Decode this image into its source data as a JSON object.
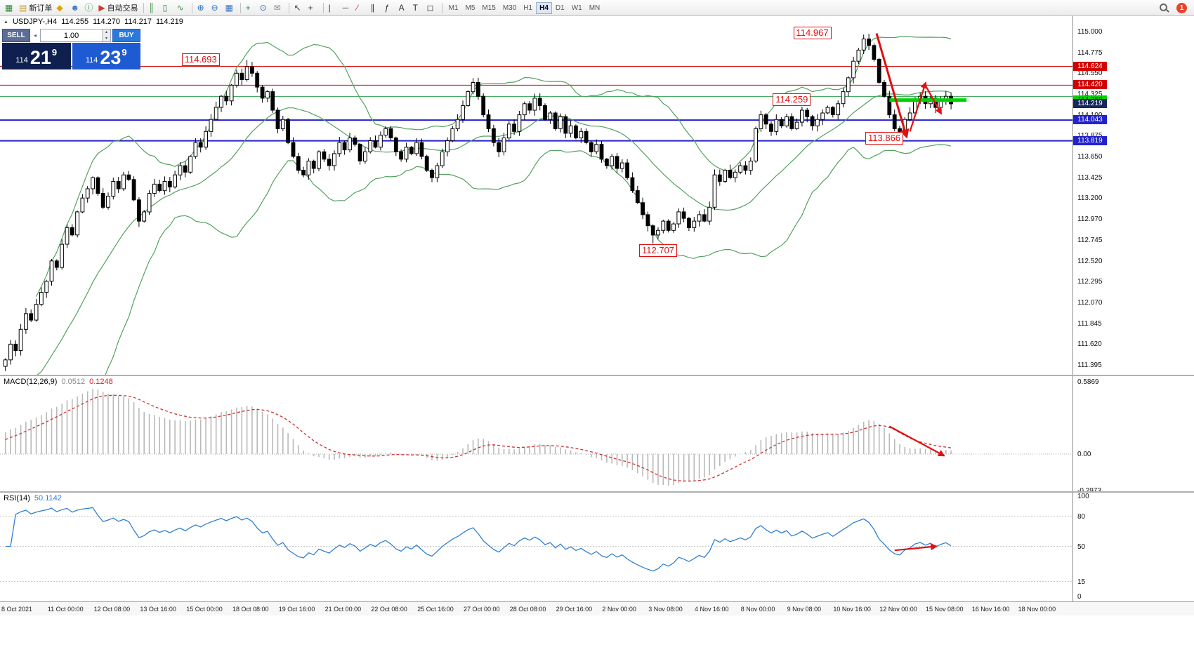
{
  "window": {
    "badge_count": "1"
  },
  "toolbar": {
    "groups": [
      {
        "name": "file",
        "items": [
          {
            "name": "new-chart-button",
            "glyph": "▦",
            "color": "#2f8a3c"
          },
          {
            "name": "new-order-button",
            "glyph": "▤",
            "color": "#caa53a",
            "label": "新订单"
          },
          {
            "name": "deposit-button",
            "glyph": "◆",
            "color": "#e2a400"
          },
          {
            "name": "community-button",
            "glyph": "☻",
            "color": "#3a79c0"
          },
          {
            "name": "help-info-button",
            "glyph": "ⓘ",
            "color": "#2f9a4e"
          },
          {
            "name": "algo-trading-button",
            "glyph": "▶",
            "color": "#d23b2f",
            "label": "自动交易"
          }
        ]
      },
      {
        "name": "chart-type",
        "items": [
          {
            "name": "bar-chart-button",
            "glyph": "║",
            "color": "#2f8a3c"
          },
          {
            "name": "candlestick-chart-button",
            "glyph": "▯",
            "color": "#2f8a3c"
          },
          {
            "name": "line-chart-button",
            "glyph": "∿",
            "color": "#2f8a3c"
          }
        ]
      },
      {
        "name": "zoom",
        "items": [
          {
            "name": "zoom-in-button",
            "glyph": "⊕",
            "color": "#2b6cb8"
          },
          {
            "name": "zoom-out-button",
            "glyph": "⊖",
            "color": "#2b6cb8"
          },
          {
            "name": "tile-windows-button",
            "glyph": "▦",
            "color": "#3a79c0"
          }
        ]
      },
      {
        "name": "indicators",
        "items": [
          {
            "name": "indicators-button",
            "glyph": "+",
            "color": "#2f8a3c"
          },
          {
            "name": "cycles-button",
            "glyph": "⊙",
            "color": "#2b6cb8"
          },
          {
            "name": "envelope-button",
            "glyph": "✉",
            "color": "#8a8a8a"
          }
        ]
      },
      {
        "name": "cursor",
        "items": [
          {
            "name": "cursor-button",
            "glyph": "↖",
            "color": "#333333"
          },
          {
            "name": "crosshair-button",
            "glyph": "+",
            "color": "#333333"
          }
        ]
      },
      {
        "name": "drawing",
        "items": [
          {
            "name": "vertical-line-button",
            "glyph": "|",
            "color": "#333333"
          },
          {
            "name": "horizontal-line-button",
            "glyph": "─",
            "color": "#333333"
          },
          {
            "name": "trendline-button",
            "glyph": "∕",
            "color": "#cc3333"
          },
          {
            "name": "channel-button",
            "glyph": "∥",
            "color": "#333333"
          },
          {
            "name": "fibonacci-button",
            "glyph": "ƒ",
            "color": "#333333"
          },
          {
            "name": "text-button",
            "glyph": "A",
            "color": "#333333"
          },
          {
            "name": "label-button",
            "glyph": "T",
            "color": "#333333"
          },
          {
            "name": "shapes-button",
            "glyph": "◻",
            "color": "#333333"
          }
        ]
      }
    ]
  },
  "timeframes": {
    "items": [
      "M1",
      "M5",
      "M15",
      "M30",
      "H1",
      "H4",
      "D1",
      "W1",
      "MN"
    ],
    "active": "H4"
  },
  "chart_title": {
    "icon": "▲",
    "symbol": "USDJPY-,H4",
    "open": "114.255",
    "high": "114.270",
    "low": "114.217",
    "close": "114.219"
  },
  "trade_panel": {
    "sell_label": "SELL",
    "buy_label": "BUY",
    "volume": "1.00",
    "bid": {
      "prefix": "114",
      "big": "21",
      "sup": "9"
    },
    "ask": {
      "prefix": "114",
      "big": "23",
      "sup": "9"
    }
  },
  "chart_data": {
    "type": "candlestick",
    "symbol": "USDJPY-",
    "timeframe": "H4",
    "colors": {
      "background": "#ffffff",
      "candle_up_fill": "#ffffff",
      "candle_down_fill": "#000000",
      "candle_border": "#000000",
      "bollinger": "#53a15e",
      "macd_histogram": "#b9b9b9",
      "macd_signal": "#d23030",
      "rsi_line": "#2f7fd4",
      "annotation_red": "#e01010",
      "green_line": "#00d400",
      "red_level": "#d40000",
      "blue_level": "#2222cc",
      "green_level": "#2e9e4f"
    },
    "price_scale": {
      "ticks": [
        "115.000",
        "114.775",
        "114.550",
        "114.325",
        "114.100",
        "113.875",
        "113.650",
        "113.425",
        "113.200",
        "112.970",
        "112.745",
        "112.520",
        "112.295",
        "112.070",
        "111.845",
        "111.620",
        "111.395"
      ],
      "tick_values": [
        115.0,
        114.775,
        114.55,
        114.325,
        114.1,
        113.875,
        113.65,
        113.425,
        113.2,
        112.97,
        112.745,
        112.52,
        112.295,
        112.07,
        111.845,
        111.62,
        111.395
      ],
      "boxes": [
        {
          "text": "114.624",
          "value": 114.624,
          "bg": "#d40000",
          "fg": "#ffffff"
        },
        {
          "text": "114.420",
          "value": 114.42,
          "bg": "#d40000",
          "fg": "#ffffff"
        },
        {
          "text": "114.259",
          "value": 114.259,
          "bg": "#00d400",
          "fg": "#002800"
        },
        {
          "text": "114.219",
          "value": 114.219,
          "bg": "#16275a",
          "fg": "#ffffff"
        },
        {
          "text": "114.043",
          "value": 114.043,
          "bg": "#2222cc",
          "fg": "#ffffff"
        },
        {
          "text": "113.819",
          "value": 113.819,
          "bg": "#2222cc",
          "fg": "#ffffff"
        }
      ]
    },
    "candles": {
      "first_open": 111.38,
      "warmup_closes": [
        110.6,
        110.75,
        110.7,
        110.9,
        110.85,
        111.0,
        111.1,
        111.05,
        111.2,
        111.15,
        111.3,
        111.4
      ],
      "closes": [
        111.45,
        111.62,
        111.55,
        111.78,
        111.95,
        111.88,
        112.05,
        112.18,
        112.3,
        112.52,
        112.45,
        112.7,
        112.88,
        112.8,
        113.05,
        113.2,
        113.3,
        113.42,
        113.25,
        113.1,
        113.22,
        113.38,
        113.3,
        113.45,
        113.4,
        113.18,
        112.95,
        113.05,
        113.25,
        113.35,
        113.28,
        113.38,
        113.32,
        113.45,
        113.55,
        113.48,
        113.65,
        113.8,
        113.75,
        113.92,
        114.05,
        114.18,
        114.3,
        114.25,
        114.42,
        114.55,
        114.48,
        114.62,
        114.55,
        114.4,
        114.28,
        114.35,
        114.15,
        113.95,
        114.05,
        113.8,
        113.65,
        113.5,
        113.45,
        113.6,
        113.52,
        113.7,
        113.62,
        113.55,
        113.68,
        113.8,
        113.72,
        113.85,
        113.78,
        113.6,
        113.7,
        113.82,
        113.75,
        113.88,
        113.95,
        113.85,
        113.7,
        113.62,
        113.75,
        113.68,
        113.8,
        113.65,
        113.5,
        113.42,
        113.55,
        113.7,
        113.82,
        113.95,
        114.05,
        114.2,
        114.35,
        114.45,
        114.3,
        114.1,
        113.95,
        113.8,
        113.7,
        113.85,
        114.0,
        113.92,
        114.1,
        114.22,
        114.15,
        114.28,
        114.2,
        114.05,
        114.12,
        113.95,
        114.08,
        113.9,
        113.98,
        113.85,
        113.92,
        113.8,
        113.7,
        113.78,
        113.62,
        113.55,
        113.65,
        113.52,
        113.58,
        113.42,
        113.28,
        113.15,
        113.02,
        112.9,
        112.8,
        112.85,
        112.95,
        112.85,
        112.92,
        113.05,
        112.98,
        112.88,
        112.95,
        113.02,
        112.95,
        113.1,
        113.45,
        113.38,
        113.5,
        113.42,
        113.48,
        113.55,
        113.5,
        113.6,
        113.95,
        114.1,
        114.0,
        113.92,
        114.05,
        113.98,
        114.08,
        113.95,
        114.02,
        114.15,
        114.08,
        113.98,
        114.05,
        114.12,
        114.18,
        114.1,
        114.22,
        114.35,
        114.5,
        114.68,
        114.8,
        114.92,
        114.85,
        114.7,
        114.45,
        114.3,
        114.1,
        113.95,
        113.9,
        114.05,
        114.12,
        114.25,
        114.3,
        114.22,
        114.28,
        114.18,
        114.25,
        114.3,
        114.219
      ],
      "wick_overrides": {
        "47": {
          "high": 114.693
        },
        "126": {
          "low": 112.707
        },
        "167": {
          "high": 114.967
        },
        "174": {
          "low": 113.866
        }
      }
    },
    "bollinger": {
      "period": 20,
      "deviation": 2
    },
    "horizontal_lines": [
      {
        "price": 114.624,
        "color": "#d40000",
        "width": 1
      },
      {
        "price": 114.42,
        "color": "#d40000",
        "width": 1
      },
      {
        "price": 114.299,
        "color": "#2e9e4f",
        "width": 1
      },
      {
        "price": 114.043,
        "color": "#2222cc",
        "width": 2
      },
      {
        "price": 113.819,
        "color": "#2222cc",
        "width": 2
      }
    ],
    "green_segment": {
      "price": 114.259,
      "from_index": 172,
      "to_index": 187,
      "width": 5,
      "color": "#00d400"
    },
    "price_labels": [
      {
        "text": "114.693",
        "index": 38,
        "price": 114.7
      },
      {
        "text": "114.967",
        "index": 157,
        "price": 114.985
      },
      {
        "text": "114.259",
        "index": 153,
        "price": 114.265
      },
      {
        "text": "113.866",
        "index": 171,
        "price": 113.85
      },
      {
        "text": "112.707",
        "index": 127,
        "price": 112.63
      }
    ],
    "arrows": {
      "main": [
        {
          "from": [
            169.5,
            114.98
          ],
          "to": [
            175.3,
            113.87
          ],
          "width": 3
        },
        {
          "from": [
            176.0,
            113.92
          ],
          "to": [
            179.0,
            114.44
          ],
          "width": 2.2
        },
        {
          "from": [
            179.2,
            114.4
          ],
          "to": [
            182.0,
            114.12
          ],
          "width": 2.2
        }
      ],
      "macd": [
        {
          "from": [
            172,
            0.225
          ],
          "to": [
            182.5,
            -0.01
          ],
          "width": 2.2
        }
      ],
      "rsi": [
        {
          "from": [
            173,
            46
          ],
          "to": [
            181,
            50
          ],
          "width": 2.2
        }
      ]
    },
    "macd": {
      "name": "MACD(12,26,9)",
      "main_value": "0.0512",
      "signal_value": "0.1248",
      "params": {
        "fast": 12,
        "slow": 26,
        "signal": 9
      },
      "scale": [
        {
          "text": "0.5869",
          "value": 0.5869
        },
        {
          "text": "0.00",
          "value": 0
        },
        {
          "text": "-0.2973",
          "value": -0.2973
        }
      ]
    },
    "rsi": {
      "name": "RSI(14)",
      "value": "50.1142",
      "period": 14,
      "levels": [
        80,
        50,
        15
      ],
      "scale": [
        {
          "text": "100",
          "value": 100
        },
        {
          "text": "80",
          "value": 80
        },
        {
          "text": "50",
          "value": 50
        },
        {
          "text": "15",
          "value": 15
        },
        {
          "text": "0",
          "value": 0
        }
      ]
    },
    "time_axis": {
      "labels": [
        "8 Oct 2021",
        "11 Oct 00:00",
        "12 Oct 08:00",
        "13 Oct 16:00",
        "15 Oct 00:00",
        "18 Oct 08:00",
        "19 Oct 16:00",
        "21 Oct 00:00",
        "22 Oct 08:00",
        "25 Oct 16:00",
        "27 Oct 00:00",
        "28 Oct 08:00",
        "29 Oct 16:00",
        "2 Nov 00:00",
        "3 Nov 08:00",
        "4 Nov 16:00",
        "8 Nov 00:00",
        "9 Nov 08:00",
        "10 Nov 16:00",
        "12 Nov 00:00",
        "15 Nov 08:00",
        "16 Nov 16:00",
        "18 Nov 00:00"
      ]
    }
  }
}
